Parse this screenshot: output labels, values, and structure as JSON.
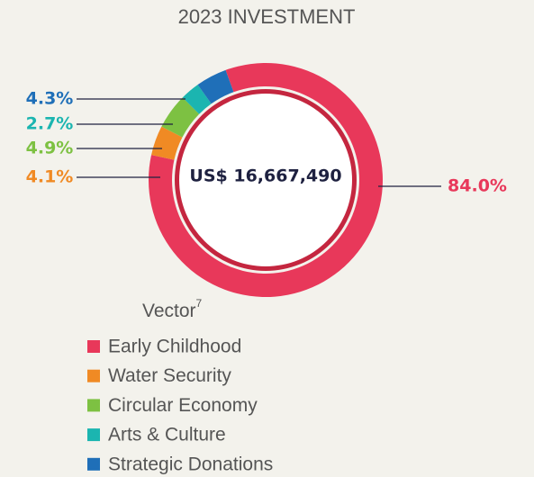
{
  "chart_data": {
    "type": "pie",
    "title": "2023 INVESTMENT",
    "center_label": "US$ 16,667,490",
    "legend_title": "Vector",
    "legend_title_superscript": "7",
    "categories": [
      "Early Childhood",
      "Water Security",
      "Circular Economy",
      "Arts & Culture",
      "Strategic Donations"
    ],
    "values": [
      84.0,
      4.1,
      4.9,
      2.7,
      4.3
    ],
    "value_labels": [
      "84.0%",
      "4.1%",
      "4.9%",
      "2.7%",
      "4.3%"
    ],
    "colors": [
      "#e8385a",
      "#f08a24",
      "#7dc142",
      "#1bb5b0",
      "#1f6fb8"
    ]
  }
}
